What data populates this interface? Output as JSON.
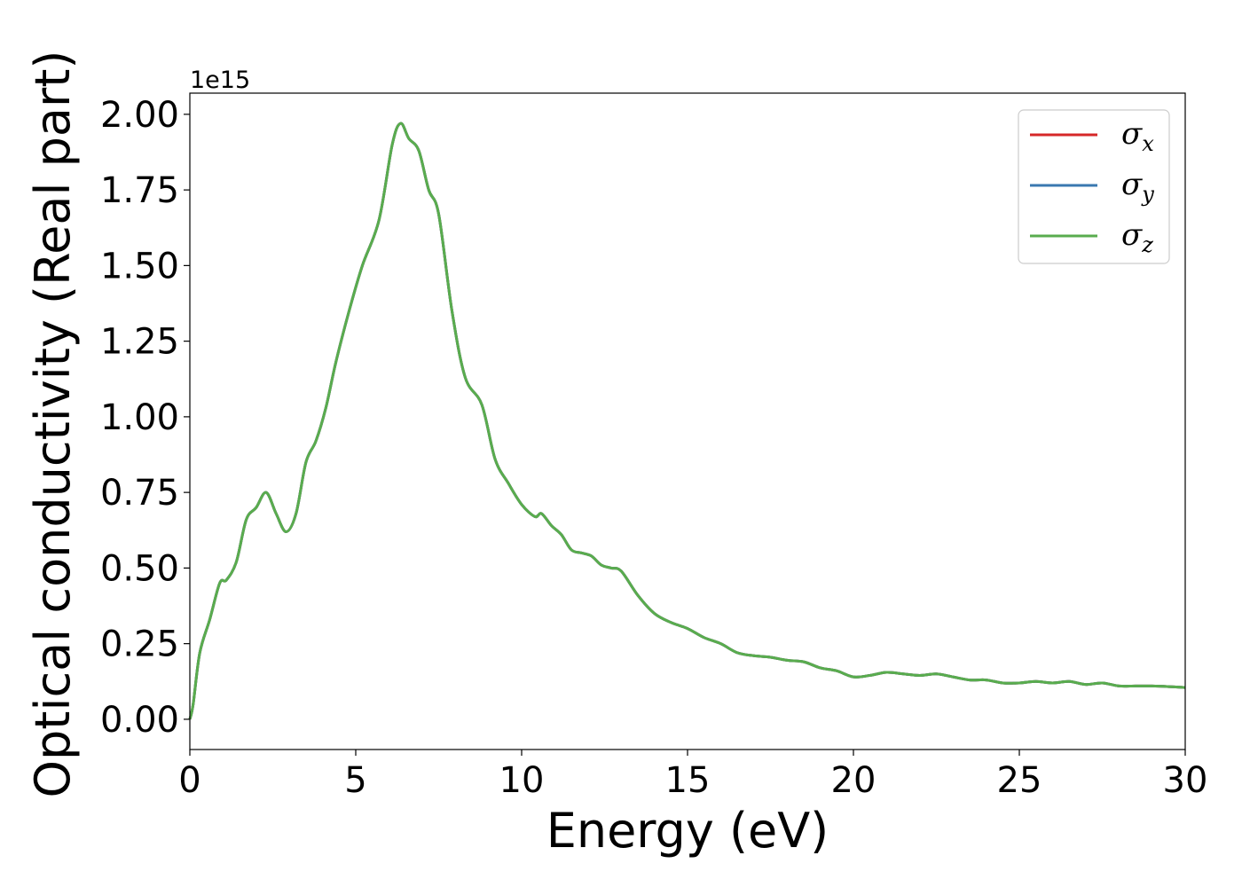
{
  "chart_data": {
    "type": "line",
    "xlabel": "Energy (eV)",
    "ylabel": "Optical conductivity (Real part)",
    "y_offset_label": "1e15",
    "xlim": [
      0,
      30
    ],
    "ylim": [
      -0.1,
      2.07
    ],
    "xticks": [
      0,
      5,
      10,
      15,
      20,
      25,
      30
    ],
    "yticks": [
      0.0,
      0.25,
      0.5,
      0.75,
      1.0,
      1.25,
      1.5,
      1.75,
      2.0
    ],
    "xtick_labels": [
      "0",
      "5",
      "10",
      "15",
      "20",
      "25",
      "30"
    ],
    "ytick_labels": [
      "0.00",
      "0.25",
      "0.50",
      "0.75",
      "1.00",
      "1.25",
      "1.50",
      "1.75",
      "2.00"
    ],
    "grid": false,
    "legend_position": "top-right",
    "x": [
      0,
      0.1,
      0.3,
      0.6,
      0.9,
      1.1,
      1.4,
      1.7,
      2.0,
      2.3,
      2.6,
      2.9,
      3.2,
      3.5,
      3.8,
      4.1,
      4.4,
      4.8,
      5.2,
      5.7,
      6.1,
      6.35,
      6.6,
      6.9,
      7.2,
      7.5,
      7.9,
      8.3,
      8.8,
      9.2,
      9.6,
      10.0,
      10.4,
      10.6,
      10.9,
      11.2,
      11.5,
      11.8,
      12.1,
      12.4,
      12.7,
      13.0,
      13.5,
      14.0,
      14.5,
      15.0,
      15.5,
      16.0,
      16.5,
      17.0,
      17.5,
      18.0,
      18.5,
      19.0,
      19.5,
      20.0,
      20.5,
      21.0,
      21.5,
      22.0,
      22.5,
      23.0,
      23.5,
      24.0,
      24.5,
      25.0,
      25.5,
      26.0,
      26.5,
      27.0,
      27.5,
      28.0,
      28.5,
      29.0,
      29.5,
      30.0
    ],
    "series": [
      {
        "name": "σ",
        "sub": "x",
        "color": "#d62728",
        "values": [
          0.0,
          0.05,
          0.22,
          0.33,
          0.45,
          0.46,
          0.52,
          0.66,
          0.7,
          0.75,
          0.68,
          0.62,
          0.68,
          0.85,
          0.92,
          1.03,
          1.18,
          1.35,
          1.5,
          1.65,
          1.9,
          1.97,
          1.92,
          1.88,
          1.75,
          1.67,
          1.35,
          1.13,
          1.04,
          0.86,
          0.78,
          0.71,
          0.67,
          0.68,
          0.64,
          0.61,
          0.56,
          0.55,
          0.54,
          0.51,
          0.5,
          0.49,
          0.41,
          0.35,
          0.32,
          0.3,
          0.27,
          0.25,
          0.22,
          0.21,
          0.205,
          0.195,
          0.19,
          0.17,
          0.16,
          0.14,
          0.145,
          0.155,
          0.15,
          0.145,
          0.15,
          0.14,
          0.13,
          0.13,
          0.12,
          0.12,
          0.125,
          0.12,
          0.125,
          0.115,
          0.12,
          0.11,
          0.11,
          0.11,
          0.108,
          0.105
        ]
      },
      {
        "name": "σ",
        "sub": "y",
        "color": "#3a78b0",
        "values": [
          0.0,
          0.05,
          0.22,
          0.33,
          0.45,
          0.46,
          0.52,
          0.66,
          0.7,
          0.75,
          0.68,
          0.62,
          0.68,
          0.85,
          0.92,
          1.03,
          1.18,
          1.35,
          1.5,
          1.65,
          1.9,
          1.97,
          1.92,
          1.88,
          1.75,
          1.67,
          1.35,
          1.13,
          1.04,
          0.86,
          0.78,
          0.71,
          0.67,
          0.68,
          0.64,
          0.61,
          0.56,
          0.55,
          0.54,
          0.51,
          0.5,
          0.49,
          0.41,
          0.35,
          0.32,
          0.3,
          0.27,
          0.25,
          0.22,
          0.21,
          0.205,
          0.195,
          0.19,
          0.17,
          0.16,
          0.14,
          0.145,
          0.155,
          0.15,
          0.145,
          0.15,
          0.14,
          0.13,
          0.13,
          0.12,
          0.12,
          0.125,
          0.12,
          0.125,
          0.115,
          0.12,
          0.11,
          0.11,
          0.11,
          0.108,
          0.105
        ]
      },
      {
        "name": "σ",
        "sub": "z",
        "color": "#59ac4e",
        "values": [
          0.0,
          0.05,
          0.22,
          0.33,
          0.45,
          0.46,
          0.52,
          0.66,
          0.7,
          0.75,
          0.68,
          0.62,
          0.68,
          0.85,
          0.92,
          1.03,
          1.18,
          1.35,
          1.5,
          1.65,
          1.9,
          1.97,
          1.92,
          1.88,
          1.75,
          1.67,
          1.35,
          1.13,
          1.04,
          0.86,
          0.78,
          0.71,
          0.67,
          0.68,
          0.64,
          0.61,
          0.56,
          0.55,
          0.54,
          0.51,
          0.5,
          0.49,
          0.41,
          0.35,
          0.32,
          0.3,
          0.27,
          0.25,
          0.22,
          0.21,
          0.205,
          0.195,
          0.19,
          0.17,
          0.16,
          0.14,
          0.145,
          0.155,
          0.15,
          0.145,
          0.15,
          0.14,
          0.13,
          0.13,
          0.12,
          0.12,
          0.125,
          0.12,
          0.125,
          0.115,
          0.12,
          0.11,
          0.11,
          0.11,
          0.108,
          0.105
        ]
      }
    ]
  }
}
